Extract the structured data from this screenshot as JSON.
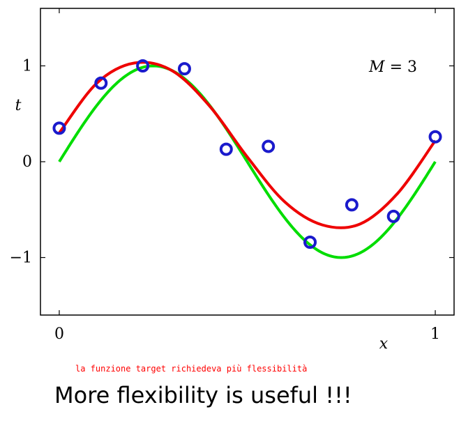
{
  "chart_data": {
    "type": "scatter",
    "xlim": [
      -0.05,
      1.05
    ],
    "ylim": [
      -1.6,
      1.6
    ],
    "xlabel": "x",
    "ylabel": "t",
    "x_ticks": [
      {
        "value": 0,
        "label": "0"
      },
      {
        "value": 1,
        "label": "1"
      }
    ],
    "y_ticks": [
      {
        "value": 1,
        "label": "1"
      },
      {
        "value": 0,
        "label": "0"
      },
      {
        "value": -1,
        "label": "−1"
      }
    ],
    "annotation": "M = 3",
    "grid": false,
    "series": [
      {
        "kind": "points",
        "color": "#1a1acc",
        "x": [
          0.0,
          0.111,
          0.222,
          0.333,
          0.444,
          0.556,
          0.667,
          0.778,
          0.889,
          1.0
        ],
        "y": [
          0.35,
          0.82,
          1.0,
          0.97,
          0.13,
          0.16,
          -0.84,
          -0.45,
          -0.57,
          0.26
        ]
      },
      {
        "kind": "curve",
        "color": "#00dd00",
        "function": "sin(2πx)"
      },
      {
        "kind": "curve",
        "color": "#ee0000",
        "polynomial_degree": 3,
        "x": [
          0.0,
          0.1,
          0.2,
          0.3,
          0.4,
          0.5,
          0.6,
          0.7,
          0.8,
          0.9,
          1.0
        ],
        "y": [
          0.3,
          0.82,
          1.03,
          0.95,
          0.58,
          0.05,
          -0.42,
          -0.66,
          -0.65,
          -0.33,
          0.22
        ]
      }
    ]
  },
  "caption": {
    "note": "la funzione target richiedeva più flessibilità",
    "headline": "More flexibility is useful !!!"
  }
}
